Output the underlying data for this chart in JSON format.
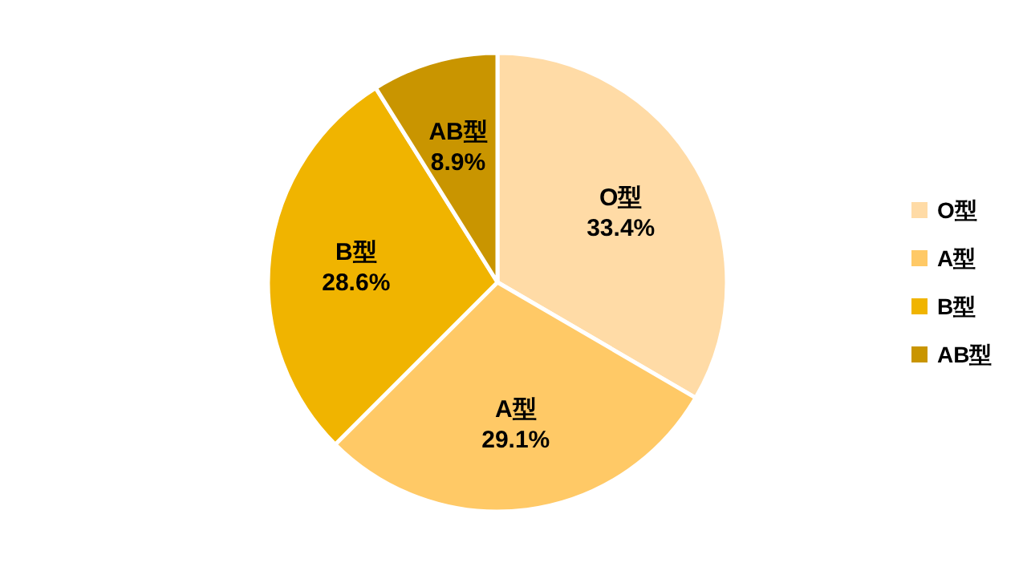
{
  "chart_data": {
    "type": "pie",
    "categories": [
      "O型",
      "A型",
      "B型",
      "AB型"
    ],
    "values": [
      33.4,
      29.1,
      28.6,
      8.9
    ],
    "value_labels": [
      "33.4%",
      "29.1%",
      "28.6%",
      "8.9%"
    ],
    "colors": [
      "#ffdba6",
      "#ffc966",
      "#f0b400",
      "#c99500"
    ],
    "legend": "right"
  }
}
